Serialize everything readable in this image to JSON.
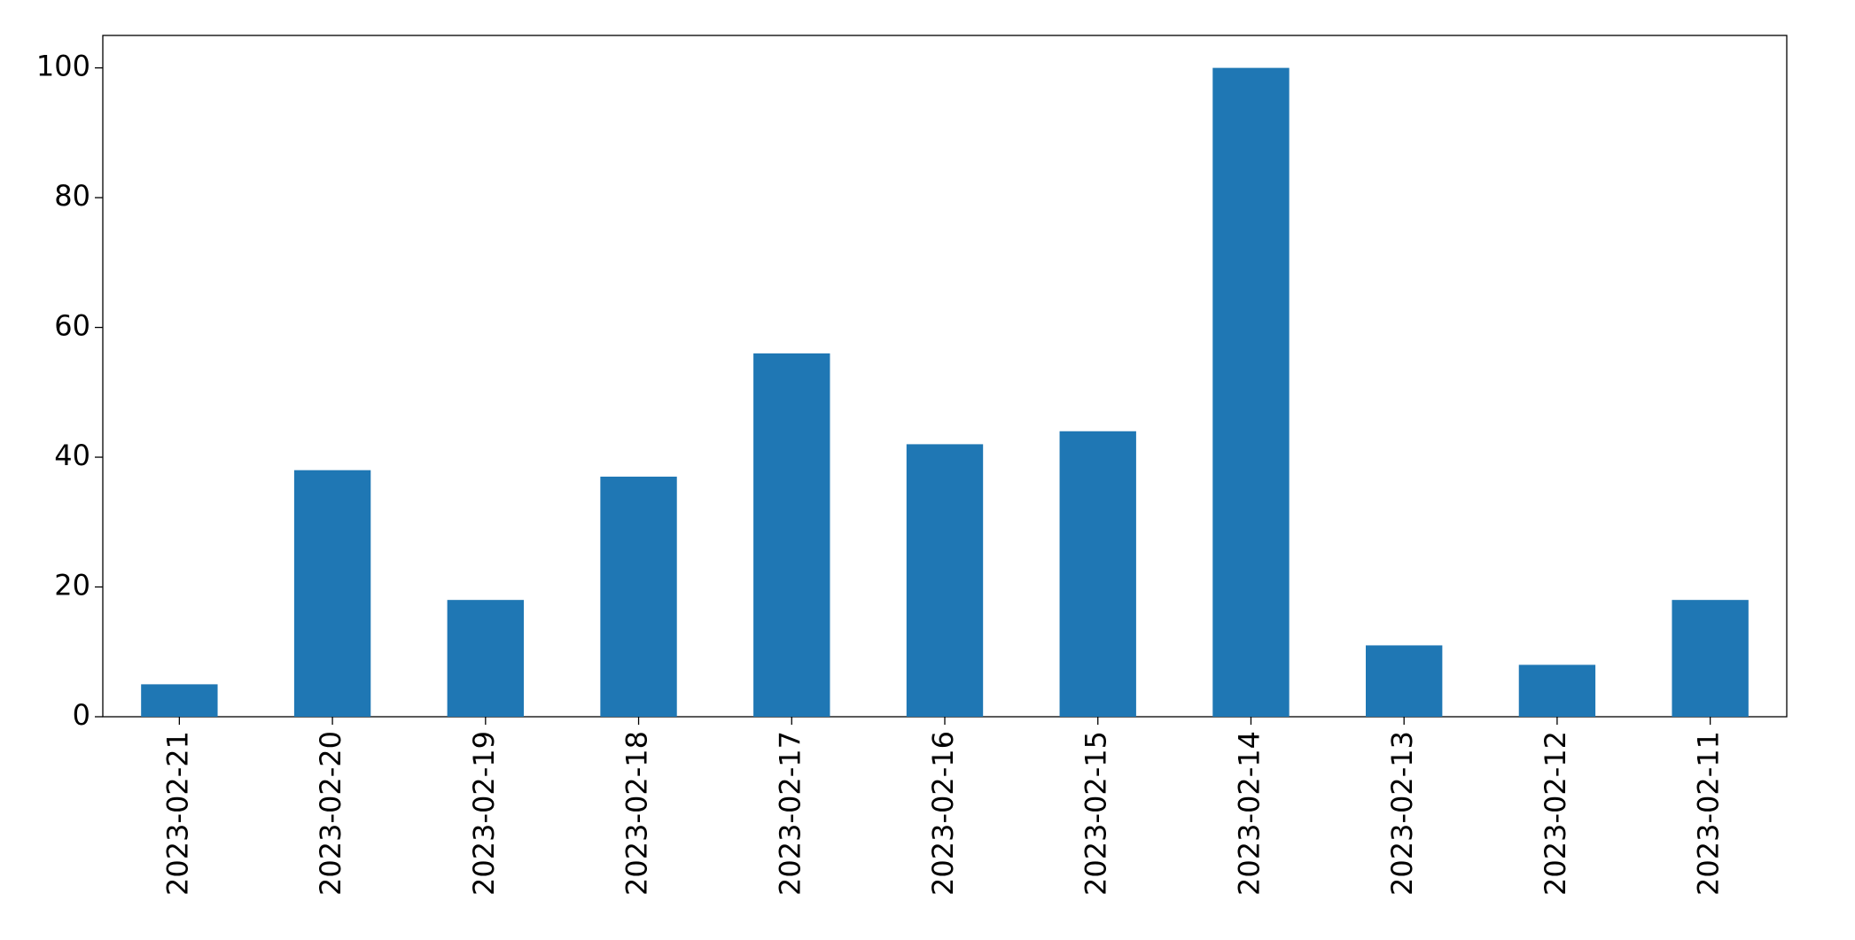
{
  "chart_data": {
    "type": "bar",
    "categories": [
      "2023-02-21",
      "2023-02-20",
      "2023-02-19",
      "2023-02-18",
      "2023-02-17",
      "2023-02-16",
      "2023-02-15",
      "2023-02-14",
      "2023-02-13",
      "2023-02-12",
      "2023-02-11"
    ],
    "values": [
      5,
      38,
      18,
      37,
      56,
      42,
      44,
      100,
      11,
      8,
      18
    ],
    "color": "#1f77b4",
    "ylim": [
      0,
      105
    ],
    "yticks": [
      0,
      20,
      40,
      60,
      80,
      100
    ],
    "grid": false
  }
}
